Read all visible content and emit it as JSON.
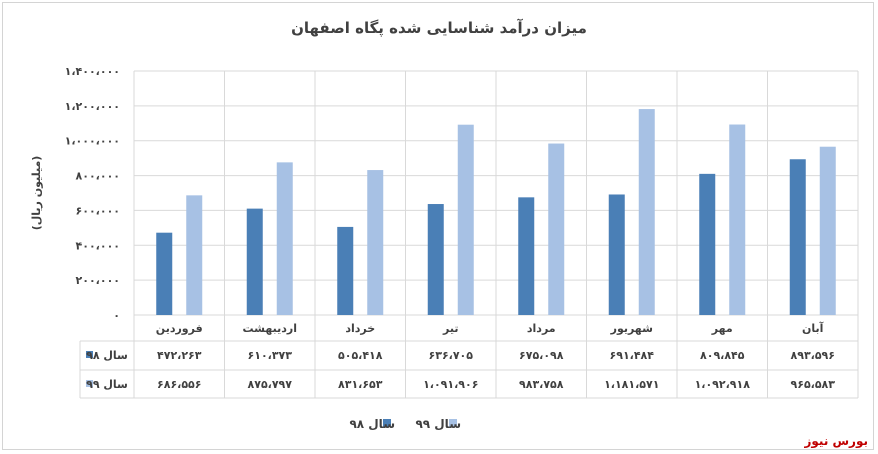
{
  "chart_data": {
    "type": "bar",
    "title": "میزان درآمد شناسایی شده پگاه اصفهان",
    "ylabel": "(میلیون ریال)",
    "ylim": [
      0,
      1400000
    ],
    "y_ticks": [
      "۰",
      "۲۰۰،۰۰۰",
      "۴۰۰،۰۰۰",
      "۶۰۰،۰۰۰",
      "۸۰۰،۰۰۰",
      "۱،۰۰۰،۰۰۰",
      "۱،۲۰۰،۰۰۰",
      "۱،۴۰۰،۰۰۰"
    ],
    "categories": [
      "فروردین",
      "اردیبهشت",
      "خرداد",
      "تیر",
      "مرداد",
      "شهریور",
      "مهر",
      "آبان"
    ],
    "series": [
      {
        "name": "سال ۹۸",
        "color": "#4a7fb6",
        "values": [
          472263,
          610373,
          505418,
          636705,
          675098,
          691484,
          809845,
          893596
        ],
        "labels": [
          "۴۷۲،۲۶۳",
          "۶۱۰،۳۷۳",
          "۵۰۵،۴۱۸",
          "۶۳۶،۷۰۵",
          "۶۷۵،۰۹۸",
          "۶۹۱،۴۸۴",
          "۸۰۹،۸۴۵",
          "۸۹۳،۵۹۶"
        ]
      },
      {
        "name": "سال ۹۹",
        "color": "#a7c1e4",
        "values": [
          686556,
          875797,
          831653,
          1091906,
          983758,
          1181571,
          1092918,
          965583
        ],
        "labels": [
          "۶۸۶،۵۵۶",
          "۸۷۵،۷۹۷",
          "۸۳۱،۶۵۳",
          "۱،۰۹۱،۹۰۶",
          "۹۸۳،۷۵۸",
          "۱،۱۸۱،۵۷۱",
          "۱،۰۹۲،۹۱۸",
          "۹۶۵،۵۸۳"
        ]
      }
    ],
    "grid": true,
    "legend": "bottom",
    "data_table": true
  },
  "watermark": "بورس نیوز"
}
